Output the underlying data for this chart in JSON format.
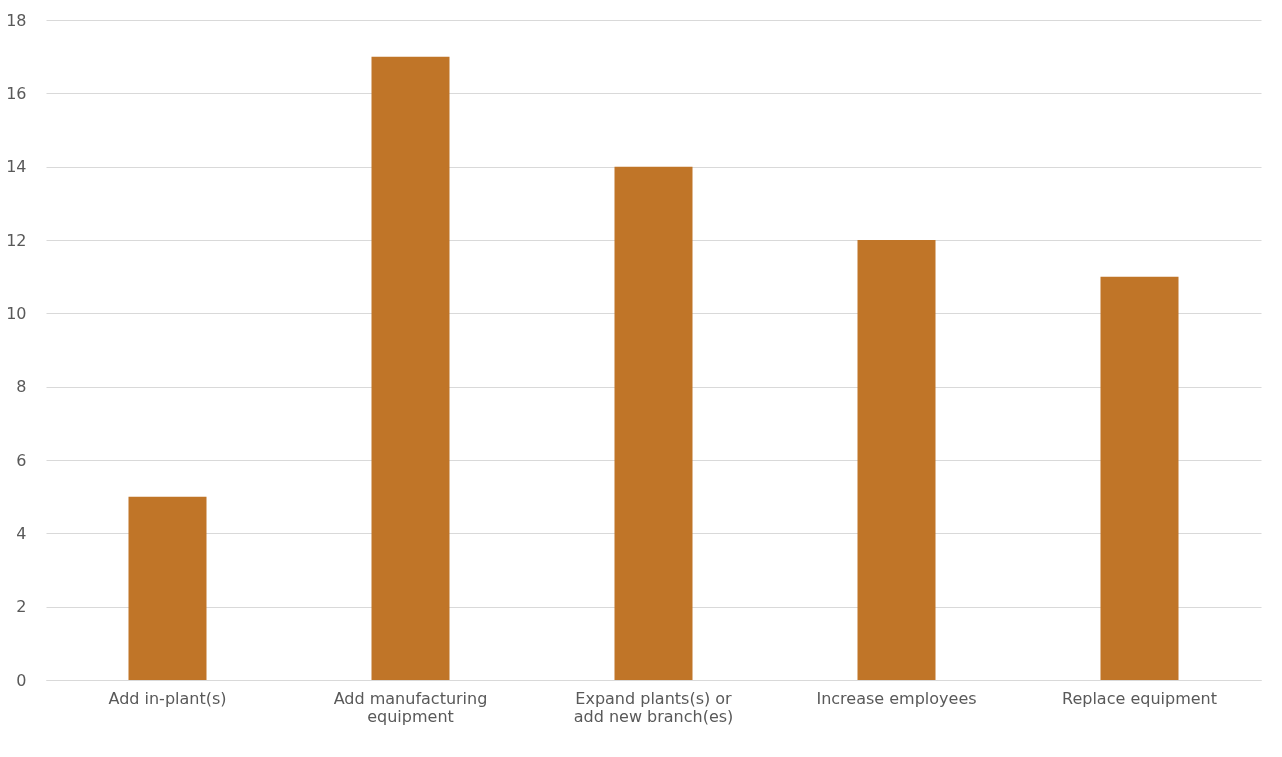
{
  "chart_data": {
    "type": "bar",
    "categories": [
      "Add in-plant(s)",
      "Add manufacturing equipment",
      "Expand plants(s) or add new branch(es)",
      "Increase employees",
      "Replace equipment"
    ],
    "values": [
      5,
      17,
      14,
      12,
      11
    ],
    "color": "#c07528",
    "ylim": [
      0,
      18
    ],
    "yticks": [
      0,
      2,
      4,
      6,
      8,
      10,
      12,
      14,
      16,
      18
    ],
    "grid": "y"
  }
}
